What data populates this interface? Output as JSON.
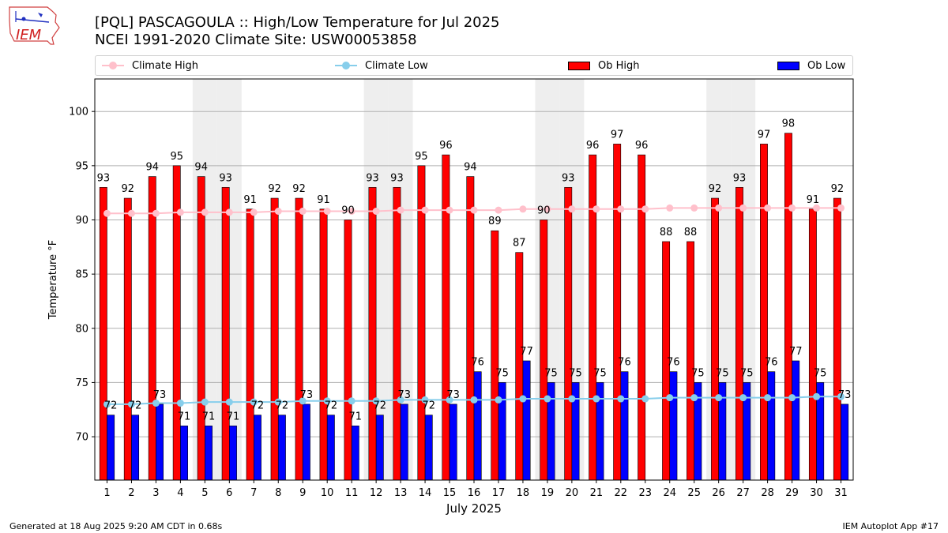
{
  "header": {
    "title_line1": "[PQL] PASCAGOULA :: High/Low Temperature for Jul 2025",
    "title_line2": "NCEI 1991-2020 Climate Site: USW00053858",
    "logo_text": "IEM"
  },
  "legend": {
    "climate_high": "Climate High",
    "climate_low": "Climate Low",
    "ob_high": "Ob High",
    "ob_low": "Ob Low"
  },
  "colors": {
    "ob_high": "#ff0000",
    "ob_low": "#0000ff",
    "climate_high": "#ffc0cb",
    "climate_low": "#87ceeb",
    "weekend": "#eeeeee",
    "grid": "#b0b0b0"
  },
  "footer": {
    "generated": "Generated at 18 Aug 2025 9:20 AM CDT in 0.68s",
    "app": "IEM Autoplot App #17"
  },
  "chart_data": {
    "type": "bar",
    "title": "[PQL] PASCAGOULA :: High/Low Temperature for Jul 2025",
    "subtitle": "NCEI 1991-2020 Climate Site: USW00053858",
    "xlabel": "July 2025",
    "ylabel": "Temperature °F",
    "ylim": [
      66,
      103
    ],
    "yticks": [
      70,
      75,
      80,
      85,
      90,
      95,
      100
    ],
    "grid": true,
    "legend_position": "top",
    "categories": [
      "1",
      "2",
      "3",
      "4",
      "5",
      "6",
      "7",
      "8",
      "9",
      "10",
      "11",
      "12",
      "13",
      "14",
      "15",
      "16",
      "17",
      "18",
      "19",
      "20",
      "21",
      "22",
      "23",
      "24",
      "25",
      "26",
      "27",
      "28",
      "29",
      "30",
      "31"
    ],
    "weekend_days": [
      5,
      6,
      12,
      13,
      19,
      20,
      26,
      27
    ],
    "series": [
      {
        "name": "Ob High",
        "kind": "bar",
        "values": [
          93,
          92,
          94,
          95,
          94,
          93,
          91,
          92,
          92,
          91,
          90,
          93,
          93,
          95,
          96,
          94,
          89,
          87,
          90,
          93,
          96,
          97,
          96,
          88,
          88,
          92,
          93,
          97,
          98,
          91,
          92
        ]
      },
      {
        "name": "Ob Low",
        "kind": "bar",
        "values": [
          72,
          72,
          73,
          71,
          71,
          71,
          72,
          72,
          73,
          72,
          71,
          72,
          73,
          72,
          73,
          76,
          75,
          77,
          75,
          75,
          75,
          76,
          null,
          76,
          75,
          75,
          75,
          76,
          77,
          75,
          73
        ]
      },
      {
        "name": "Climate High",
        "kind": "line",
        "values": [
          90.6,
          90.6,
          90.6,
          90.7,
          90.7,
          90.7,
          90.7,
          90.8,
          90.8,
          90.8,
          90.8,
          90.8,
          90.9,
          90.9,
          90.9,
          90.9,
          90.9,
          91.0,
          91.0,
          91.0,
          91.0,
          91.0,
          91.0,
          91.1,
          91.1,
          91.1,
          91.1,
          91.1,
          91.1,
          91.1,
          91.1
        ]
      },
      {
        "name": "Climate Low",
        "kind": "line",
        "values": [
          73.0,
          73.0,
          73.1,
          73.1,
          73.2,
          73.2,
          73.2,
          73.2,
          73.3,
          73.3,
          73.3,
          73.3,
          73.4,
          73.4,
          73.4,
          73.4,
          73.4,
          73.5,
          73.5,
          73.5,
          73.5,
          73.5,
          73.5,
          73.6,
          73.6,
          73.6,
          73.6,
          73.6,
          73.6,
          73.7,
          73.7
        ]
      }
    ]
  }
}
